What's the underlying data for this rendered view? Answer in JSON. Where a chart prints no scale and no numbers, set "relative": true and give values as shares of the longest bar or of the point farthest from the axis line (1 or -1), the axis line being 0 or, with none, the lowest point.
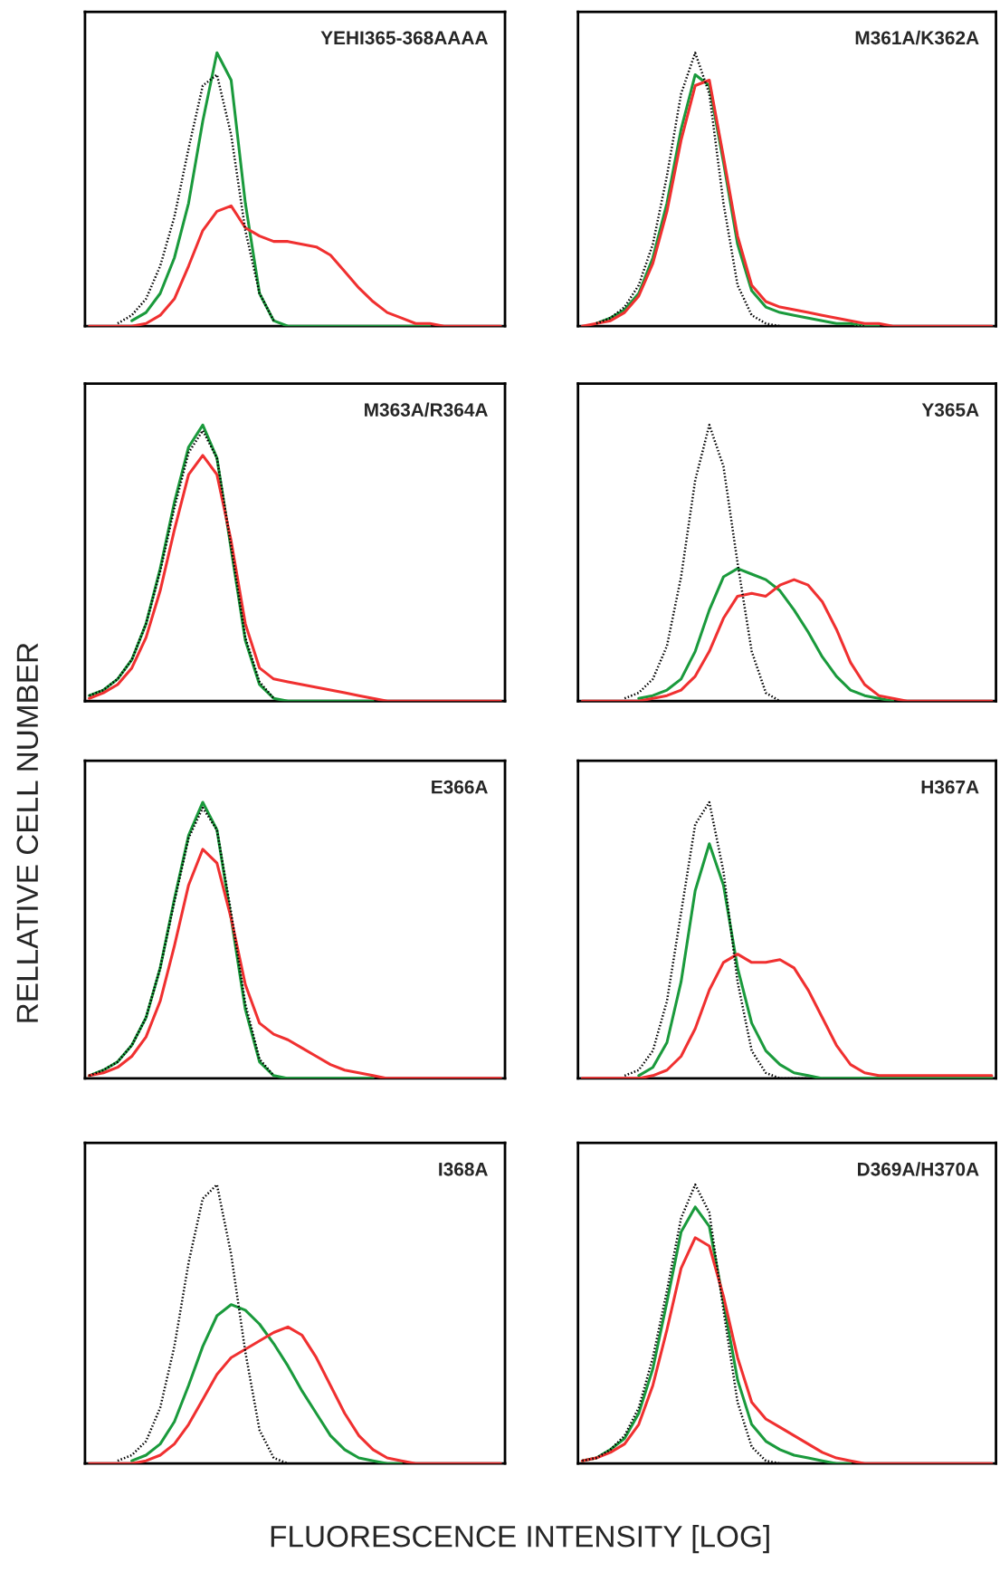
{
  "chart_data": [
    {
      "type": "line",
      "title": "YEHI365-368AAAA",
      "relative": true,
      "categories": [
        null,
        null,
        null,
        null,
        null,
        null,
        null,
        null,
        null,
        null,
        null,
        null,
        null,
        null,
        null,
        null,
        null,
        null,
        null,
        null,
        null,
        null,
        null,
        null,
        null,
        null,
        null,
        null,
        null,
        null
      ],
      "series": [
        {
          "color": "#000000",
          "line_style": "dotted",
          "values": [
            null,
            null,
            0.01,
            0.04,
            0.1,
            0.22,
            0.4,
            0.65,
            0.88,
            0.92,
            0.7,
            0.35,
            0.12,
            0.02,
            null,
            null,
            null,
            null,
            null,
            null,
            null,
            null,
            null,
            null,
            null,
            null,
            null,
            null,
            null,
            null
          ]
        },
        {
          "color": "#1a9a3c",
          "line_style": "solid",
          "values": [
            null,
            null,
            null,
            0.02,
            0.05,
            0.12,
            0.25,
            0.45,
            0.75,
            1.0,
            0.9,
            0.45,
            0.12,
            0.02,
            0,
            0,
            0,
            0,
            0,
            0,
            0,
            0,
            0,
            0,
            0,
            null,
            null,
            null,
            null,
            null
          ]
        },
        {
          "color": "#f03030",
          "line_style": "solid",
          "values": [
            0,
            0,
            0,
            0,
            0.01,
            0.04,
            0.1,
            0.22,
            0.35,
            0.42,
            0.44,
            0.36,
            0.33,
            0.31,
            0.31,
            0.3,
            0.29,
            0.26,
            0.2,
            0.14,
            0.09,
            0.05,
            0.03,
            0.01,
            0.01,
            0,
            0,
            0,
            0,
            0
          ]
        }
      ]
    },
    {
      "type": "line",
      "title": "M361A/K362A",
      "relative": true,
      "categories": [
        null,
        null,
        null,
        null,
        null,
        null,
        null,
        null,
        null,
        null,
        null,
        null,
        null,
        null,
        null,
        null,
        null,
        null,
        null,
        null,
        null,
        null,
        null,
        null,
        null,
        null,
        null,
        null,
        null,
        null
      ],
      "series": [
        {
          "color": "#000000",
          "line_style": "dotted",
          "values": [
            null,
            0.01,
            0.03,
            0.07,
            0.15,
            0.3,
            0.55,
            0.85,
            1.0,
            0.85,
            0.45,
            0.15,
            0.04,
            0.01,
            0,
            0,
            0,
            0,
            0,
            0,
            0,
            null,
            null,
            null,
            null,
            null,
            null,
            null,
            null,
            null
          ]
        },
        {
          "color": "#1a9a3c",
          "line_style": "solid",
          "values": [
            null,
            0.01,
            0.03,
            0.06,
            0.12,
            0.25,
            0.45,
            0.72,
            0.92,
            0.88,
            0.6,
            0.3,
            0.13,
            0.07,
            0.05,
            0.04,
            0.03,
            0.02,
            0.01,
            0.01,
            0,
            0,
            null,
            null,
            null,
            null,
            null,
            null,
            null,
            null
          ]
        },
        {
          "color": "#f03030",
          "line_style": "solid",
          "values": [
            0,
            0.01,
            0.02,
            0.05,
            0.11,
            0.23,
            0.42,
            0.68,
            0.88,
            0.9,
            0.62,
            0.33,
            0.15,
            0.09,
            0.07,
            0.06,
            0.05,
            0.04,
            0.03,
            0.02,
            0.01,
            0.01,
            0,
            0,
            0,
            0,
            0,
            0,
            0,
            0
          ]
        }
      ]
    },
    {
      "type": "line",
      "title": "M363A/R364A",
      "relative": true,
      "ylabel": "RELLATIVE CELL NUMBER",
      "categories": [
        null,
        null,
        null,
        null,
        null,
        null,
        null,
        null,
        null,
        null,
        null,
        null,
        null,
        null,
        null,
        null,
        null,
        null,
        null,
        null,
        null,
        null,
        null,
        null,
        null,
        null,
        null,
        null,
        null,
        null
      ],
      "series": [
        {
          "color": "#000000",
          "line_style": "dotted",
          "values": [
            0.02,
            0.04,
            0.08,
            0.15,
            0.28,
            0.47,
            0.7,
            0.9,
            0.98,
            0.88,
            0.56,
            0.23,
            0.07,
            0.01,
            null,
            null,
            null,
            null,
            null,
            null,
            null,
            null,
            null,
            null,
            null,
            null,
            null,
            null,
            null,
            null
          ]
        },
        {
          "color": "#1a9a3c",
          "line_style": "solid",
          "values": [
            0.02,
            0.04,
            0.08,
            0.15,
            0.28,
            0.48,
            0.72,
            0.92,
            1.0,
            0.88,
            0.55,
            0.22,
            0.06,
            0.01,
            0,
            0,
            0,
            0,
            0,
            0,
            0,
            null,
            null,
            null,
            null,
            null,
            null,
            null,
            null,
            null
          ]
        },
        {
          "color": "#f03030",
          "line_style": "solid",
          "values": [
            0.01,
            0.03,
            0.06,
            0.12,
            0.23,
            0.4,
            0.62,
            0.82,
            0.89,
            0.82,
            0.58,
            0.28,
            0.12,
            0.08,
            0.07,
            0.06,
            0.05,
            0.04,
            0.03,
            0.02,
            0.01,
            0,
            0,
            0,
            0,
            0,
            0,
            0,
            0,
            0
          ]
        }
      ]
    },
    {
      "type": "line",
      "title": "Y365A",
      "relative": true,
      "categories": [
        null,
        null,
        null,
        null,
        null,
        null,
        null,
        null,
        null,
        null,
        null,
        null,
        null,
        null,
        null,
        null,
        null,
        null,
        null,
        null,
        null,
        null,
        null,
        null,
        null,
        null,
        null,
        null,
        null,
        null
      ],
      "series": [
        {
          "color": "#000000",
          "line_style": "dotted",
          "values": [
            null,
            null,
            null,
            0.01,
            0.03,
            0.08,
            0.2,
            0.45,
            0.8,
            1.0,
            0.85,
            0.5,
            0.18,
            0.03,
            0,
            0,
            0,
            0,
            0,
            0,
            0,
            0,
            null,
            null,
            null,
            null,
            null,
            null,
            null,
            null
          ]
        },
        {
          "color": "#1a9a3c",
          "line_style": "solid",
          "values": [
            null,
            null,
            null,
            null,
            0.01,
            0.02,
            0.04,
            0.08,
            0.18,
            0.33,
            0.45,
            0.48,
            0.46,
            0.44,
            0.4,
            0.33,
            0.25,
            0.16,
            0.09,
            0.04,
            0.02,
            0.01,
            0,
            null,
            null,
            null,
            null,
            null,
            null,
            null
          ]
        },
        {
          "color": "#f03030",
          "line_style": "solid",
          "values": [
            0,
            0,
            0,
            0,
            0,
            0.01,
            0.02,
            0.04,
            0.09,
            0.18,
            0.3,
            0.38,
            0.39,
            0.38,
            0.42,
            0.44,
            0.42,
            0.36,
            0.26,
            0.14,
            0.06,
            0.02,
            0.01,
            0,
            0,
            0,
            0,
            0,
            0,
            0
          ]
        }
      ]
    },
    {
      "type": "line",
      "title": "E366A",
      "relative": true,
      "categories": [
        null,
        null,
        null,
        null,
        null,
        null,
        null,
        null,
        null,
        null,
        null,
        null,
        null,
        null,
        null,
        null,
        null,
        null,
        null,
        null,
        null,
        null,
        null,
        null,
        null,
        null,
        null,
        null,
        null,
        null
      ],
      "series": [
        {
          "color": "#000000",
          "line_style": "dotted",
          "values": [
            0.01,
            0.03,
            0.06,
            0.12,
            0.22,
            0.4,
            0.64,
            0.87,
            0.98,
            0.9,
            0.6,
            0.27,
            0.07,
            0.01,
            null,
            null,
            null,
            null,
            null,
            null,
            null,
            null,
            null,
            null,
            null,
            null,
            null,
            null,
            null,
            null
          ]
        },
        {
          "color": "#1a9a3c",
          "line_style": "solid",
          "values": [
            0.01,
            0.03,
            0.06,
            0.12,
            0.22,
            0.4,
            0.65,
            0.88,
            1.0,
            0.9,
            0.58,
            0.25,
            0.06,
            0.01,
            0,
            0,
            0,
            0,
            0,
            0,
            0,
            null,
            null,
            null,
            null,
            null,
            null,
            null,
            null,
            null
          ]
        },
        {
          "color": "#f03030",
          "line_style": "solid",
          "values": [
            0.01,
            0.02,
            0.04,
            0.08,
            0.15,
            0.28,
            0.48,
            0.7,
            0.83,
            0.78,
            0.58,
            0.34,
            0.2,
            0.16,
            0.14,
            0.11,
            0.08,
            0.05,
            0.03,
            0.02,
            0.01,
            0,
            0,
            0,
            0,
            0,
            0,
            0,
            0,
            0
          ]
        }
      ]
    },
    {
      "type": "line",
      "title": "H367A",
      "relative": true,
      "categories": [
        null,
        null,
        null,
        null,
        null,
        null,
        null,
        null,
        null,
        null,
        null,
        null,
        null,
        null,
        null,
        null,
        null,
        null,
        null,
        null,
        null,
        null,
        null,
        null,
        null,
        null,
        null,
        null,
        null,
        null
      ],
      "series": [
        {
          "color": "#000000",
          "line_style": "dotted",
          "values": [
            null,
            null,
            null,
            0.01,
            0.03,
            0.1,
            0.28,
            0.6,
            0.92,
            1.0,
            0.75,
            0.35,
            0.1,
            0.02,
            0,
            0,
            0,
            null,
            null,
            null,
            null,
            null,
            null,
            null,
            null,
            null,
            null,
            null,
            null,
            null
          ]
        },
        {
          "color": "#1a9a3c",
          "line_style": "solid",
          "values": [
            null,
            null,
            null,
            null,
            0.01,
            0.04,
            0.13,
            0.35,
            0.68,
            0.85,
            0.7,
            0.4,
            0.2,
            0.1,
            0.05,
            0.02,
            0.01,
            0,
            0,
            0,
            0,
            0,
            0,
            0,
            0,
            0,
            0,
            0,
            0,
            0
          ]
        },
        {
          "color": "#f03030",
          "line_style": "solid",
          "values": [
            0,
            0,
            0,
            0,
            0,
            0.01,
            0.03,
            0.08,
            0.18,
            0.32,
            0.42,
            0.45,
            0.42,
            0.42,
            0.43,
            0.4,
            0.32,
            0.22,
            0.12,
            0.05,
            0.02,
            0.01,
            0.01,
            0.01,
            0.01,
            0.01,
            0.01,
            0.01,
            0.01,
            0.01
          ]
        }
      ]
    },
    {
      "type": "line",
      "title": "I368A",
      "relative": true,
      "xlabel": "FLUORESCENCE INTENSITY [LOG]",
      "categories": [
        null,
        null,
        null,
        null,
        null,
        null,
        null,
        null,
        null,
        null,
        null,
        null,
        null,
        null,
        null,
        null,
        null,
        null,
        null,
        null,
        null,
        null,
        null,
        null,
        null,
        null,
        null,
        null,
        null,
        null
      ],
      "series": [
        {
          "color": "#000000",
          "line_style": "dotted",
          "values": [
            null,
            null,
            0.01,
            0.03,
            0.08,
            0.2,
            0.42,
            0.72,
            0.95,
            1.0,
            0.75,
            0.4,
            0.12,
            0.02,
            0,
            0,
            0,
            0,
            0,
            0,
            0,
            null,
            null,
            null,
            null,
            null,
            null,
            null,
            null,
            null
          ]
        },
        {
          "color": "#1a9a3c",
          "line_style": "solid",
          "values": [
            null,
            null,
            null,
            0.01,
            0.03,
            0.07,
            0.15,
            0.28,
            0.42,
            0.53,
            0.57,
            0.55,
            0.5,
            0.43,
            0.35,
            0.26,
            0.18,
            0.1,
            0.05,
            0.02,
            0.01,
            0,
            0,
            null,
            null,
            null,
            null,
            null,
            null,
            null
          ]
        },
        {
          "color": "#f03030",
          "line_style": "solid",
          "values": [
            0,
            0,
            0,
            0,
            0.01,
            0.03,
            0.07,
            0.14,
            0.23,
            0.32,
            0.38,
            0.41,
            0.44,
            0.47,
            0.49,
            0.46,
            0.38,
            0.28,
            0.18,
            0.1,
            0.05,
            0.02,
            0.01,
            0,
            0,
            0,
            0,
            0,
            0,
            0
          ]
        }
      ]
    },
    {
      "type": "line",
      "title": "D369A/H370A",
      "relative": true,
      "categories": [
        null,
        null,
        null,
        null,
        null,
        null,
        null,
        null,
        null,
        null,
        null,
        null,
        null,
        null,
        null,
        null,
        null,
        null,
        null,
        null,
        null,
        null,
        null,
        null,
        null,
        null,
        null,
        null,
        null,
        null
      ],
      "series": [
        {
          "color": "#000000",
          "line_style": "dotted",
          "values": [
            0.01,
            0.02,
            0.05,
            0.1,
            0.2,
            0.38,
            0.62,
            0.88,
            1.0,
            0.9,
            0.55,
            0.22,
            0.06,
            0.01,
            0,
            0,
            0,
            0,
            null,
            null,
            null,
            null,
            null,
            null,
            null,
            null,
            null,
            null,
            null,
            null
          ]
        },
        {
          "color": "#1a9a3c",
          "line_style": "solid",
          "values": [
            0.01,
            0.02,
            0.05,
            0.09,
            0.18,
            0.34,
            0.58,
            0.83,
            0.92,
            0.85,
            0.58,
            0.3,
            0.14,
            0.08,
            0.05,
            0.03,
            0.02,
            0.01,
            0,
            0,
            null,
            null,
            null,
            null,
            null,
            null,
            null,
            null,
            null,
            null
          ]
        },
        {
          "color": "#f03030",
          "line_style": "solid",
          "values": [
            0.01,
            0.02,
            0.04,
            0.07,
            0.14,
            0.28,
            0.48,
            0.7,
            0.81,
            0.78,
            0.6,
            0.38,
            0.22,
            0.16,
            0.13,
            0.1,
            0.07,
            0.04,
            0.02,
            0.01,
            0,
            0,
            0,
            0,
            0,
            0,
            0,
            0,
            0,
            0
          ]
        }
      ]
    }
  ]
}
